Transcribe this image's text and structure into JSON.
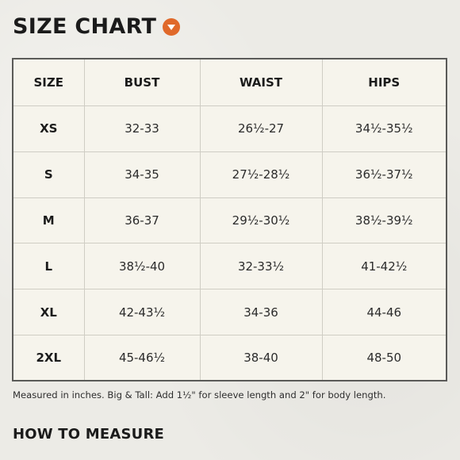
{
  "title": "SIZE CHART",
  "dropdown_icon": "chevron-down-icon",
  "accent_color": "#e0692a",
  "table": {
    "headers": [
      "SIZE",
      "BUST",
      "WAIST",
      "HIPS"
    ],
    "rows": [
      [
        "XS",
        "32-33",
        "26½-27",
        "34½-35½"
      ],
      [
        "S",
        "34-35",
        "27½-28½",
        "36½-37½"
      ],
      [
        "M",
        "36-37",
        "29½-30½",
        "38½-39½"
      ],
      [
        "L",
        "38½-40",
        "32-33½",
        "41-42½"
      ],
      [
        "XL",
        "42-43½",
        "34-36",
        "44-46"
      ],
      [
        "2XL",
        "45-46½",
        "38-40",
        "48-50"
      ]
    ]
  },
  "note": "Measured in inches. Big & Tall: Add 1½\" for sleeve length and 2\" for body length.",
  "how_to_measure": "HOW TO MEASURE"
}
